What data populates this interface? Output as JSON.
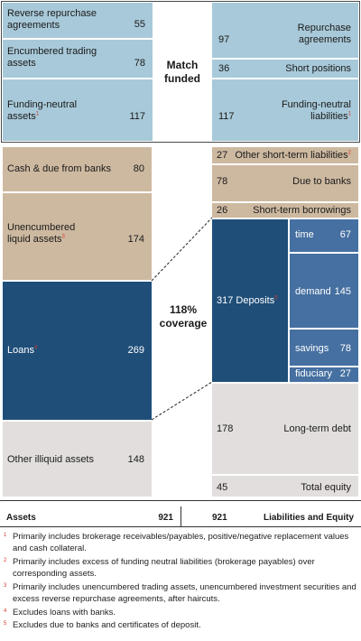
{
  "match_funded": {
    "label": "Match funded",
    "assets": [
      {
        "label": "Reverse repurchase agreements",
        "value": "55"
      },
      {
        "label": "Encumbered trading assets",
        "value": "78"
      },
      {
        "label": "Funding-neutral assets",
        "sup": "1",
        "value": "117"
      }
    ],
    "liabilities": [
      {
        "label": "Repurchase agreements",
        "value": "97"
      },
      {
        "label": "Short positions",
        "value": "36"
      },
      {
        "label": "Funding-neutral liabilities",
        "sup": "1",
        "value": "117"
      }
    ]
  },
  "assets": [
    {
      "label": "Cash & due from banks",
      "value": "80"
    },
    {
      "label": "Unencumbered liquid assets",
      "sup": "3",
      "value": "174"
    },
    {
      "label": "Loans",
      "sup": "4",
      "value": "269"
    },
    {
      "label": "Other illiquid assets",
      "value": "148"
    }
  ],
  "coverage": {
    "label": "118% coverage"
  },
  "liabilities": {
    "other_short_term": {
      "label": "Other short-term liabilities",
      "sup": "2",
      "value": "27"
    },
    "due_to_banks": {
      "label": "Due to banks",
      "value": "78"
    },
    "short_term_borrowings": {
      "label": "Short-term borrowings",
      "value": "26"
    },
    "deposits": {
      "label": "Deposits",
      "sup": "5",
      "value": "317",
      "items": [
        {
          "label": "time",
          "value": "67"
        },
        {
          "label": "demand",
          "value": "145"
        },
        {
          "label": "savings",
          "value": "78"
        },
        {
          "label": "fiduciary",
          "value": "27"
        }
      ]
    },
    "long_term_debt": {
      "label": "Long-term debt",
      "value": "178"
    },
    "total_equity": {
      "label": "Total equity",
      "value": "45"
    }
  },
  "totals": {
    "assets_label": "Assets",
    "assets_value": "921",
    "liabilities_value": "921",
    "liabilities_label": "Liabilities and Equity"
  },
  "footnotes": [
    {
      "n": "1",
      "text": "Primarily includes brokerage receivables/payables, positive/negative replacement values and cash collateral."
    },
    {
      "n": "2",
      "text": "Primarily includes excess of funding neutral liabilities (brokerage payables) over corresponding assets."
    },
    {
      "n": "3",
      "text": "Primarily includes unencumbered trading assets, unencumbered investment securities and excess reverse repurchase agreements, after haircuts."
    },
    {
      "n": "4",
      "text": "Excludes loans with banks."
    },
    {
      "n": "5",
      "text": "Excludes due to banks and certificates of deposit."
    }
  ],
  "colors": {
    "light_blue": "#a8c9d9",
    "tan": "#cdb9a0",
    "navy": "#1f4e79",
    "mid_blue": "#4670a1",
    "grey": "#e3dede",
    "footnote_red": "#d63a2f"
  }
}
